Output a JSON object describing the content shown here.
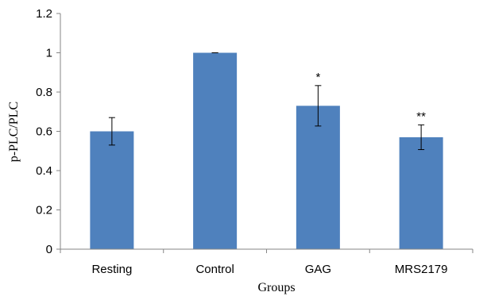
{
  "chart_data": {
    "type": "bar",
    "categories": [
      "Resting",
      "Control",
      "GAG",
      "MRS2179"
    ],
    "values": [
      0.6,
      1.0,
      0.73,
      0.57
    ],
    "errors": [
      0.07,
      0.0,
      0.103,
      0.063
    ],
    "annotations": [
      "",
      "",
      "*",
      "**"
    ],
    "xlabel": "Groups",
    "ylabel": "p-PLC/PLC",
    "ylim": [
      0,
      1.2
    ],
    "yticks": [
      0,
      0.2,
      0.4,
      0.6,
      0.8,
      1,
      1.2
    ],
    "ytick_labels": [
      "0",
      "0.2",
      "0.4",
      "0.6",
      "0.8",
      "1",
      "1.2"
    ],
    "grid": false,
    "legend": "none",
    "bar_color": "#4f81bd"
  }
}
